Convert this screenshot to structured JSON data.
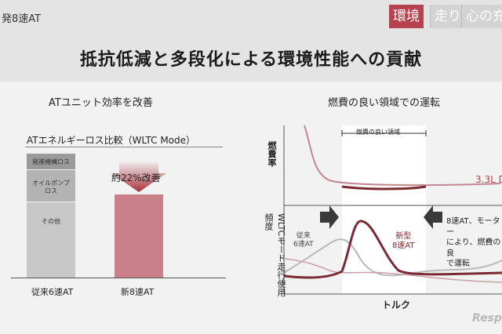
{
  "header": {
    "subtitle": "発8速AT",
    "nav_tabs": [
      {
        "label": "環境",
        "active": true
      },
      {
        "label": "走り",
        "active": false
      },
      {
        "label": "心の充",
        "active": false
      }
    ],
    "title": "抵抗低減と多段化による環境性能への貢献"
  },
  "left_panel": {
    "heading": "ATユニット効率を改善",
    "chart_title": "ATエネルギーロス比較（WLTC Mode）",
    "stack_segments": [
      "発進機構ロス",
      "オイルポンプ\nロス",
      "その他"
    ],
    "improvement_label": "約22%改善",
    "x_labels": [
      "従来6速AT",
      "新8速AT"
    ]
  },
  "right_panel": {
    "heading": "燃費の良い領域での運転",
    "band_label": "燃費の良い領域",
    "y_top_label": "燃費率",
    "y_bottom_label": "WLTCモード走行使用頻度",
    "engine_label": "3.3L D",
    "old_label": "従来\n6速AT",
    "new_label": "新型\n8速AT",
    "note": "8速AT、モーター\nにより、燃費の良\nで運転",
    "x_label": "トルク"
  },
  "watermark": "Resp",
  "colors": {
    "accent": "#b5434f",
    "dark_red": "#7a2a30",
    "new_bar": "#c98088",
    "old_bar": "#9a9a9a"
  }
}
